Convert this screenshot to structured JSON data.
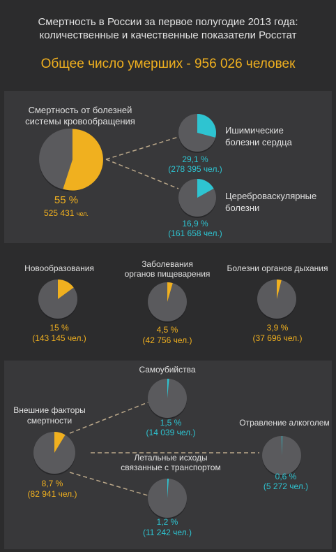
{
  "header": {
    "title_line1": "Смертность в России за первое полугодие 2013 года:",
    "title_line2": "количественные и качественные показатели Росстат",
    "headline": "Общее число умерших - 956 026 человек"
  },
  "colors": {
    "background": "#2c2c2d",
    "panel": "#38383a",
    "pie": "#5a5a5d",
    "accent": "#f0b01f",
    "cyan": "#2ec4d1"
  },
  "chart_data": {
    "type": "pie",
    "total_deaths": 956026,
    "groups": [
      {
        "label": "Смертность от болезней системы кровообращения",
        "label_line1": "Смертность от болезней",
        "label_line2": "системы кровообращения",
        "percent": 55,
        "percent_text": "55 %",
        "count_text": "525 431",
        "unit": "чел.",
        "color": "#f0b01f",
        "sub": [
          {
            "label_line1": "Ишимические",
            "label_line2": "болезни сердца",
            "percent": 29.1,
            "percent_text": "29,1 %",
            "count_text": "(278 395 чел.)",
            "color": "#2ec4d1"
          },
          {
            "label_line1": "Цереброваскулярные",
            "label_line2": "болезни",
            "percent": 16.9,
            "percent_text": "16,9 %",
            "count_text": "(161 658 чел.)",
            "color": "#2ec4d1"
          }
        ]
      },
      {
        "label_line1": "Новообразования",
        "label_line2": "",
        "percent": 15,
        "percent_text": "15 %",
        "count_text": "(143 145 чел.)",
        "color": "#f0b01f"
      },
      {
        "label_line1": "Заболевания",
        "label_line2": "органов пищеварения",
        "percent": 4.5,
        "percent_text": "4,5 %",
        "count_text": "(42 756 чел.)",
        "color": "#f0b01f"
      },
      {
        "label_line1": "Болезни органов дыхания",
        "label_line2": "",
        "percent": 3.9,
        "percent_text": "3,9 %",
        "count_text": "(37 696 чел.)",
        "color": "#f0b01f"
      },
      {
        "label_line1": "Внешние факторы",
        "label_line2": "смертности",
        "percent": 8.7,
        "percent_text": "8,7 %",
        "count_text": "(82 941 чел.)",
        "color": "#f0b01f",
        "sub": [
          {
            "label_line1": "Самоубийства",
            "label_line2": "",
            "percent": 1.5,
            "percent_text": "1,5 %",
            "count_text": "(14 039 чел.)",
            "color": "#2ec4d1"
          },
          {
            "label_line1": "Отравление алкоголем",
            "label_line2": "",
            "percent": 0.6,
            "percent_text": "0,6 %",
            "count_text": "(5 272 чел.)",
            "color": "#2ec4d1"
          },
          {
            "label_line1": "Летальные исходы",
            "label_line2": "связанные с транспортом",
            "percent": 1.2,
            "percent_text": "1,2 %",
            "count_text": "(11 242 чел.)",
            "color": "#2ec4d1"
          }
        ]
      }
    ]
  }
}
